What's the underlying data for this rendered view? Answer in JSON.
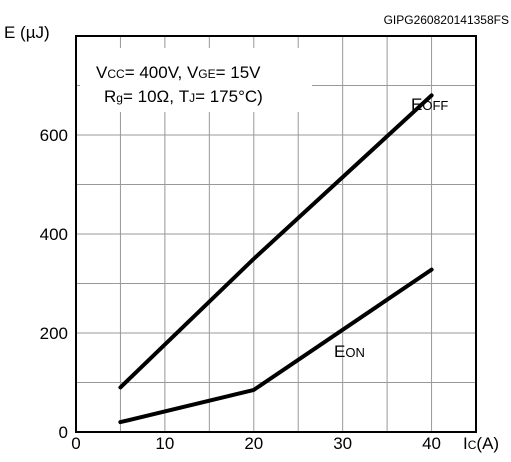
{
  "figure_code": "GIPG260820141358FS",
  "conditions": {
    "line1": {
      "vcc_prefix": "V",
      "vcc_sub": "CC",
      "vcc_value": "= 400V, ",
      "vge_prefix": "V",
      "vge_sub": "GE",
      "vge_value": "= 15V"
    },
    "line2": {
      "rg_prefix": "R",
      "rg_sub": "g",
      "rg_value": "= 10Ω, ",
      "tj_prefix": "T",
      "tj_sub": "J",
      "tj_value": "= 175°C)"
    }
  },
  "chart_data": {
    "type": "line",
    "ylabel": "E (µJ)",
    "xlabel_prefix": "I",
    "xlabel_sub": "C",
    "xlabel_unit": "(A)",
    "xlim": [
      0,
      45
    ],
    "ylim": [
      0,
      800
    ],
    "xticks": [
      0,
      10,
      20,
      30,
      40
    ],
    "yticks": [
      0,
      200,
      400,
      600
    ],
    "x_tick_labels": [
      "0",
      "10",
      "20",
      "30",
      "40"
    ],
    "y_tick_labels": [
      "0",
      "200",
      "400",
      "600"
    ],
    "grid": true,
    "series": [
      {
        "name_prefix": "E",
        "name_sub": "OFF",
        "x": [
          5,
          20,
          40
        ],
        "y": [
          90,
          350,
          680
        ]
      },
      {
        "name_prefix": "E",
        "name_sub": "ON",
        "x": [
          5,
          20,
          40
        ],
        "y": [
          20,
          85,
          328
        ]
      }
    ],
    "colors": {
      "line": "#000000",
      "grid": "#999999",
      "frame": "#000000"
    }
  }
}
